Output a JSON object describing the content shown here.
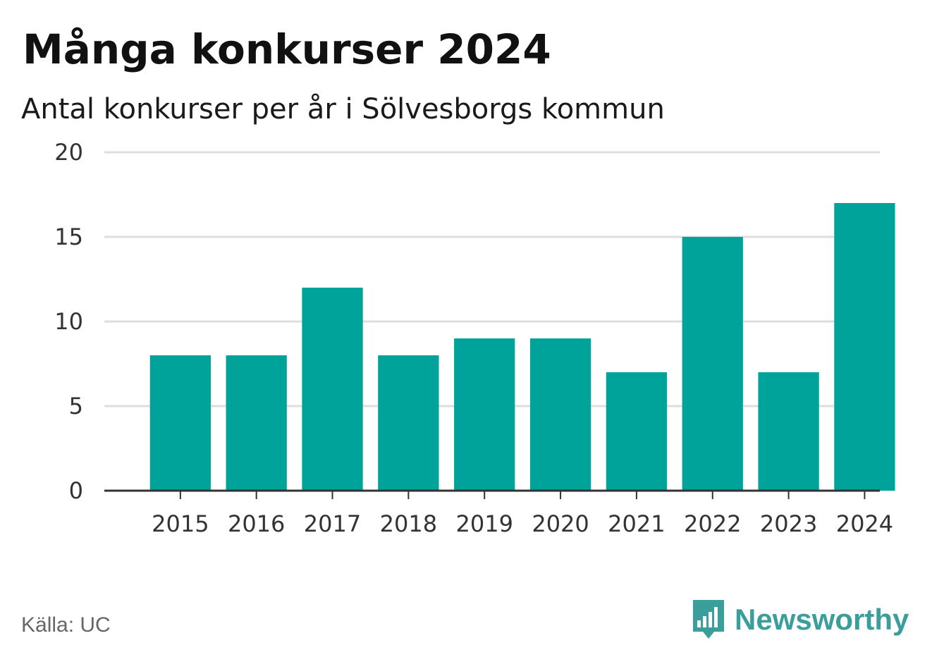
{
  "title": "Många konkurser 2024",
  "subtitle": "Antal konkurser per år i Sölvesborgs kommun",
  "source": "Källa: UC",
  "brand": {
    "name": "Newsworthy",
    "icon": "bar-chart-speech-bubble-icon",
    "color": "#3a9e9a"
  },
  "colors": {
    "bar": "#00a39a",
    "grid": "#dddddd",
    "axis": "#333333"
  },
  "chart_data": {
    "type": "bar",
    "categories": [
      "2015",
      "2016",
      "2017",
      "2018",
      "2019",
      "2020",
      "2021",
      "2022",
      "2023",
      "2024"
    ],
    "values": [
      8,
      8,
      12,
      8,
      9,
      9,
      7,
      15,
      7,
      17
    ],
    "ylim": [
      0,
      20
    ],
    "yticks": [
      0,
      5,
      10,
      15,
      20
    ],
    "grid": true,
    "legend": "none"
  }
}
